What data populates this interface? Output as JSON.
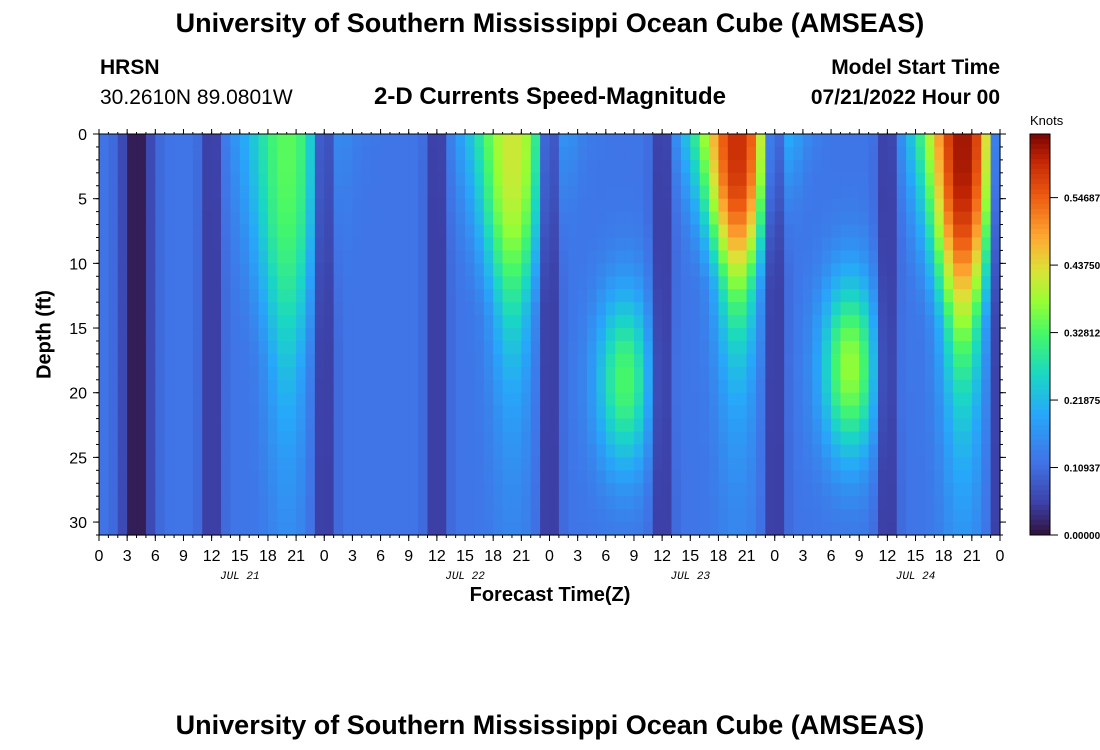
{
  "page_title": "University of Southern Mississippi Ocean Cube (AMSEAS)",
  "station": {
    "name": "HRSN",
    "coords": "30.2610N  89.0801W"
  },
  "plot_title": "2-D Currents Speed-Magnitude",
  "model": {
    "label": "Model Start Time",
    "start": "07/21/2022 Hour 00"
  },
  "colorbar": {
    "units": "Knots",
    "tick_labels": [
      "0.00000",
      "0.10937",
      "0.21875",
      "0.32812",
      "0.43750",
      "0.54687"
    ]
  },
  "footer_title": "University of Southern Mississippi Ocean Cube (AMSEAS)",
  "chart_data": {
    "type": "heatmap",
    "title": "2-D Currents Speed-Magnitude",
    "xlabel": "Forecast Time(Z)",
    "ylabel": "Depth (ft)",
    "x_ticks": [
      "0",
      "3",
      "6",
      "9",
      "12",
      "15",
      "18",
      "21",
      "0",
      "3",
      "6",
      "9",
      "12",
      "15",
      "18",
      "21",
      "0",
      "3",
      "6",
      "9",
      "12",
      "15",
      "18",
      "21",
      "0",
      "3",
      "6",
      "9",
      "12",
      "15",
      "18",
      "21",
      "0"
    ],
    "date_labels": [
      {
        "label": "JUL 21",
        "hour": 15
      },
      {
        "label": "JUL 22",
        "hour": 39
      },
      {
        "label": "JUL 23",
        "hour": 63
      },
      {
        "label": "JUL 24",
        "hour": 87
      }
    ],
    "xlim": [
      0,
      96
    ],
    "y_ticks": [
      0,
      5,
      10,
      15,
      20,
      25,
      30
    ],
    "ylim": [
      0,
      31
    ],
    "color_range": [
      0,
      0.65
    ],
    "color_ticks": [
      0.0,
      0.10937,
      0.21875,
      0.32812,
      0.4375,
      0.54687
    ],
    "features_knots": [
      {
        "kind": "surface_max",
        "hour": 20,
        "depth_extent_ft": 18,
        "peak": 0.34
      },
      {
        "kind": "surface_max",
        "hour": 44,
        "depth_extent_ft": 14,
        "peak": 0.42
      },
      {
        "kind": "surface_max",
        "hour": 68,
        "depth_extent_ft": 12,
        "peak": 0.6
      },
      {
        "kind": "surface_max",
        "hour": 92,
        "depth_extent_ft": 15,
        "peak": 0.63
      },
      {
        "kind": "subsurface_max",
        "hour": 56,
        "depth_ft": 19,
        "peak": 0.33
      },
      {
        "kind": "subsurface_max",
        "hour": 80,
        "depth_ft": 18,
        "peak": 0.38
      },
      {
        "kind": "slack_column",
        "hours": [
          4,
          12,
          24,
          36,
          48,
          60,
          72,
          84,
          96
        ],
        "value": 0.02
      }
    ],
    "unit": "Knots"
  }
}
